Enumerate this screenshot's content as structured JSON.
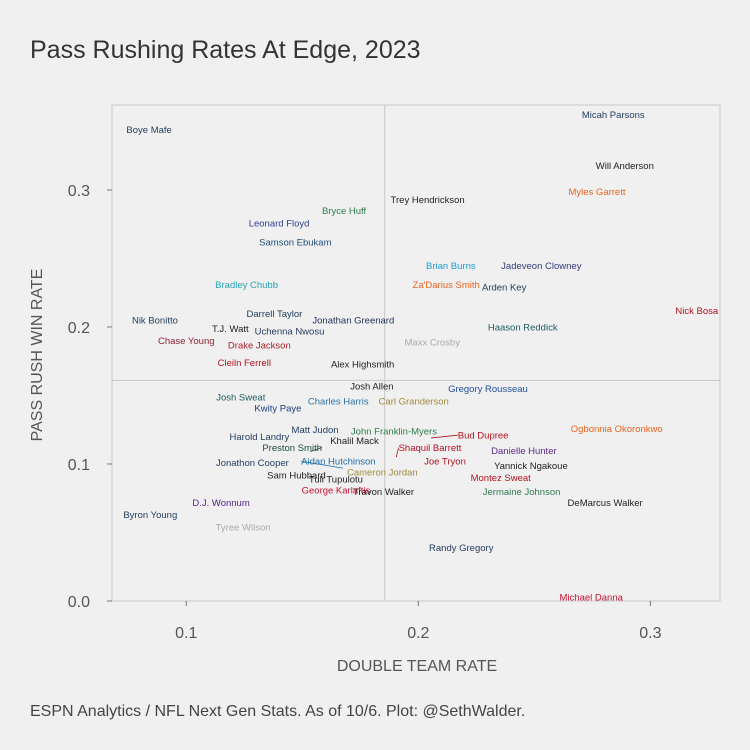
{
  "chart_data": {
    "type": "scatter",
    "title": "Pass Rushing Rates At Edge, 2023",
    "xlabel": "DOUBLE TEAM RATE",
    "ylabel": "PASS RUSH WIN RATE",
    "xlim": [
      0.068,
      0.33
    ],
    "ylim": [
      0.0,
      0.362
    ],
    "xticks": [
      {
        "value": 0.1,
        "label": "0.1"
      },
      {
        "value": 0.2,
        "label": "0.2"
      },
      {
        "value": 0.3,
        "label": "0.3"
      }
    ],
    "yticks": [
      {
        "value": 0.0,
        "label": "0.0"
      },
      {
        "value": 0.1,
        "label": "0.1"
      },
      {
        "value": 0.2,
        "label": "0.2"
      },
      {
        "value": 0.3,
        "label": "0.3"
      }
    ],
    "reference_lines": {
      "x": 0.1855,
      "y": 0.161
    },
    "grid": false,
    "points": [
      {
        "name": "Micah Parsons",
        "x": 0.284,
        "y": 0.355,
        "color": "#1f3b5c",
        "anchor": "middle"
      },
      {
        "name": "Boye Mafe",
        "x": 0.084,
        "y": 0.344,
        "color": "#1f3b5c",
        "anchor": "middle"
      },
      {
        "name": "Will Anderson",
        "x": 0.289,
        "y": 0.318,
        "color": "#222222",
        "anchor": "middle"
      },
      {
        "name": "Myles Garrett",
        "x": 0.277,
        "y": 0.299,
        "color": "#e8641f",
        "anchor": "middle"
      },
      {
        "name": "Trey Hendrickson",
        "x": 0.204,
        "y": 0.293,
        "color": "#222222",
        "anchor": "middle"
      },
      {
        "name": "Bryce Huff",
        "x": 0.168,
        "y": 0.285,
        "color": "#2e7d4f",
        "anchor": "middle"
      },
      {
        "name": "Leonard Floyd",
        "x": 0.14,
        "y": 0.276,
        "color": "#2d3f8f",
        "anchor": "middle"
      },
      {
        "name": "Samson Ebukam",
        "x": 0.147,
        "y": 0.262,
        "color": "#1f4e79",
        "anchor": "middle"
      },
      {
        "name": "Brian Burns",
        "x": 0.214,
        "y": 0.245,
        "color": "#1b9ad6",
        "anchor": "middle"
      },
      {
        "name": "Jadeveon Clowney",
        "x": 0.253,
        "y": 0.245,
        "color": "#333c7a",
        "anchor": "middle"
      },
      {
        "name": "Bradley Chubb",
        "x": 0.126,
        "y": 0.231,
        "color": "#2aa3b8",
        "anchor": "middle"
      },
      {
        "name": "Za'Darius Smith",
        "x": 0.212,
        "y": 0.231,
        "color": "#e8641f",
        "anchor": "middle"
      },
      {
        "name": "Arden Key",
        "x": 0.237,
        "y": 0.229,
        "color": "#1f3b5c",
        "anchor": "middle"
      },
      {
        "name": "Nick Bosa",
        "x": 0.32,
        "y": 0.212,
        "color": "#b3121f",
        "anchor": "middle"
      },
      {
        "name": "Darrell Taylor",
        "x": 0.138,
        "y": 0.21,
        "color": "#1f3b5c",
        "anchor": "middle"
      },
      {
        "name": "Nik Bonitto",
        "x": 0.0865,
        "y": 0.205,
        "color": "#1f3b5c",
        "anchor": "middle"
      },
      {
        "name": "Jonathan Greenard",
        "x": 0.172,
        "y": 0.205,
        "color": "#1f2f4f",
        "anchor": "middle"
      },
      {
        "name": "T.J. Watt",
        "x": 0.119,
        "y": 0.199,
        "color": "#222222",
        "anchor": "middle"
      },
      {
        "name": "Haason Reddick",
        "x": 0.245,
        "y": 0.2,
        "color": "#1f5c5c",
        "anchor": "middle"
      },
      {
        "name": "Uchenna Nwosu",
        "x": 0.1445,
        "y": 0.197,
        "color": "#1f3b5c",
        "anchor": "middle"
      },
      {
        "name": "Chase Young",
        "x": 0.1,
        "y": 0.19,
        "color": "#8b2232",
        "anchor": "middle"
      },
      {
        "name": "Drake Jackson",
        "x": 0.1315,
        "y": 0.187,
        "color": "#aa1e2a",
        "anchor": "middle"
      },
      {
        "name": "Maxx Crosby",
        "x": 0.206,
        "y": 0.189,
        "color": "#a5acaf",
        "anchor": "middle"
      },
      {
        "name": "Cleiln Ferrell",
        "x": 0.125,
        "y": 0.174,
        "color": "#b3121f",
        "anchor": "middle"
      },
      {
        "name": "Alex Highsmith",
        "x": 0.176,
        "y": 0.173,
        "color": "#222222",
        "anchor": "middle"
      },
      {
        "name": "Josh Allen",
        "x": 0.18,
        "y": 0.157,
        "color": "#222222",
        "anchor": "middle"
      },
      {
        "name": "Gregory Rousseau",
        "x": 0.23,
        "y": 0.155,
        "color": "#1f4e9e",
        "anchor": "middle"
      },
      {
        "name": "Josh Sweat",
        "x": 0.1235,
        "y": 0.149,
        "color": "#1f5c5c",
        "anchor": "middle"
      },
      {
        "name": "Charles Harris",
        "x": 0.1655,
        "y": 0.146,
        "color": "#2874a6",
        "anchor": "middle"
      },
      {
        "name": "Carl Granderson",
        "x": 0.198,
        "y": 0.146,
        "color": "#a08a3b",
        "anchor": "middle"
      },
      {
        "name": "Kwity Paye",
        "x": 0.1395,
        "y": 0.141,
        "color": "#1f3b78",
        "anchor": "middle"
      },
      {
        "name": "Matt Judon",
        "x": 0.1555,
        "y": 0.125,
        "color": "#1f3b5c",
        "anchor": "middle"
      },
      {
        "name": "John Franklin-Myers",
        "x": 0.1895,
        "y": 0.124,
        "color": "#2e7d4f",
        "anchor": "middle"
      },
      {
        "name": "Ogbonnia Okoronkwo",
        "x": 0.2855,
        "y": 0.126,
        "color": "#e8641f",
        "anchor": "middle"
      },
      {
        "name": "Harold Landry",
        "x": 0.1315,
        "y": 0.12,
        "color": "#1f3b5c",
        "anchor": "middle"
      },
      {
        "name": "Bud Dupree",
        "x": 0.2055,
        "y": 0.119,
        "color": "#b3121f",
        "anchor": "start",
        "lx": 0.217,
        "ly": 0.121
      },
      {
        "name": "Khalil Mack",
        "x": 0.1725,
        "y": 0.117,
        "color": "#222222",
        "anchor": "middle"
      },
      {
        "name": "Preston Smith",
        "x": 0.1535,
        "y": 0.109,
        "color": "#1f4d3c",
        "anchor": "end",
        "lx": 0.1585,
        "ly": 0.112
      },
      {
        "name": "Shaquil Barrett",
        "x": 0.1905,
        "y": 0.105,
        "color": "#b3121f",
        "anchor": "start",
        "lx": 0.1915,
        "ly": 0.112
      },
      {
        "name": "Danielle Hunter",
        "x": 0.2455,
        "y": 0.11,
        "color": "#5b2a86",
        "anchor": "middle"
      },
      {
        "name": "Aidan Hutchinson",
        "x": 0.1675,
        "y": 0.097,
        "color": "#1b6ea8",
        "anchor": "start",
        "lx": 0.1495,
        "ly": 0.102
      },
      {
        "name": "Joe Tryon",
        "x": 0.2115,
        "y": 0.102,
        "color": "#b3121f",
        "anchor": "middle"
      },
      {
        "name": "Jonathon Cooper",
        "x": 0.1285,
        "y": 0.101,
        "color": "#1f3b5c",
        "anchor": "middle"
      },
      {
        "name": "Yannick Ngakoue",
        "x": 0.2485,
        "y": 0.099,
        "color": "#222222",
        "anchor": "middle"
      },
      {
        "name": "Cameron Jordan",
        "x": 0.1845,
        "y": 0.094,
        "color": "#a08a3b",
        "anchor": "middle"
      },
      {
        "name": "Sam Hubbard",
        "x": 0.1475,
        "y": 0.092,
        "color": "#222222",
        "anchor": "middle"
      },
      {
        "name": "Tuli Tupulotu",
        "x": 0.1645,
        "y": 0.089,
        "color": "#222222",
        "anchor": "middle"
      },
      {
        "name": "Montez Sweat",
        "x": 0.2355,
        "y": 0.09,
        "color": "#b3121f",
        "anchor": "middle"
      },
      {
        "name": "George Karlaftis",
        "x": 0.1645,
        "y": 0.081,
        "color": "#c8102e",
        "anchor": "middle"
      },
      {
        "name": "Travon Walker",
        "x": 0.185,
        "y": 0.08,
        "color": "#222222",
        "anchor": "middle"
      },
      {
        "name": "Jermaine Johnson",
        "x": 0.2445,
        "y": 0.08,
        "color": "#2e7d4f",
        "anchor": "middle"
      },
      {
        "name": "D.J. Wonnum",
        "x": 0.115,
        "y": 0.072,
        "color": "#4f2683",
        "anchor": "middle"
      },
      {
        "name": "DeMarcus Walker",
        "x": 0.2805,
        "y": 0.072,
        "color": "#222222",
        "anchor": "middle"
      },
      {
        "name": "Byron Young",
        "x": 0.0845,
        "y": 0.063,
        "color": "#1f3b5c",
        "anchor": "middle"
      },
      {
        "name": "Tyree Wilson",
        "x": 0.1245,
        "y": 0.054,
        "color": "#a5acaf",
        "anchor": "middle"
      },
      {
        "name": "Randy Gregory",
        "x": 0.2185,
        "y": 0.039,
        "color": "#1f3b5c",
        "anchor": "middle"
      },
      {
        "name": "Michael Danna",
        "x": 0.2745,
        "y": 0.003,
        "color": "#c8102e",
        "anchor": "middle"
      }
    ]
  },
  "caption": "ESPN Analytics / NFL Next Gen Stats. As of 10/6. Plot: @SethWalder."
}
